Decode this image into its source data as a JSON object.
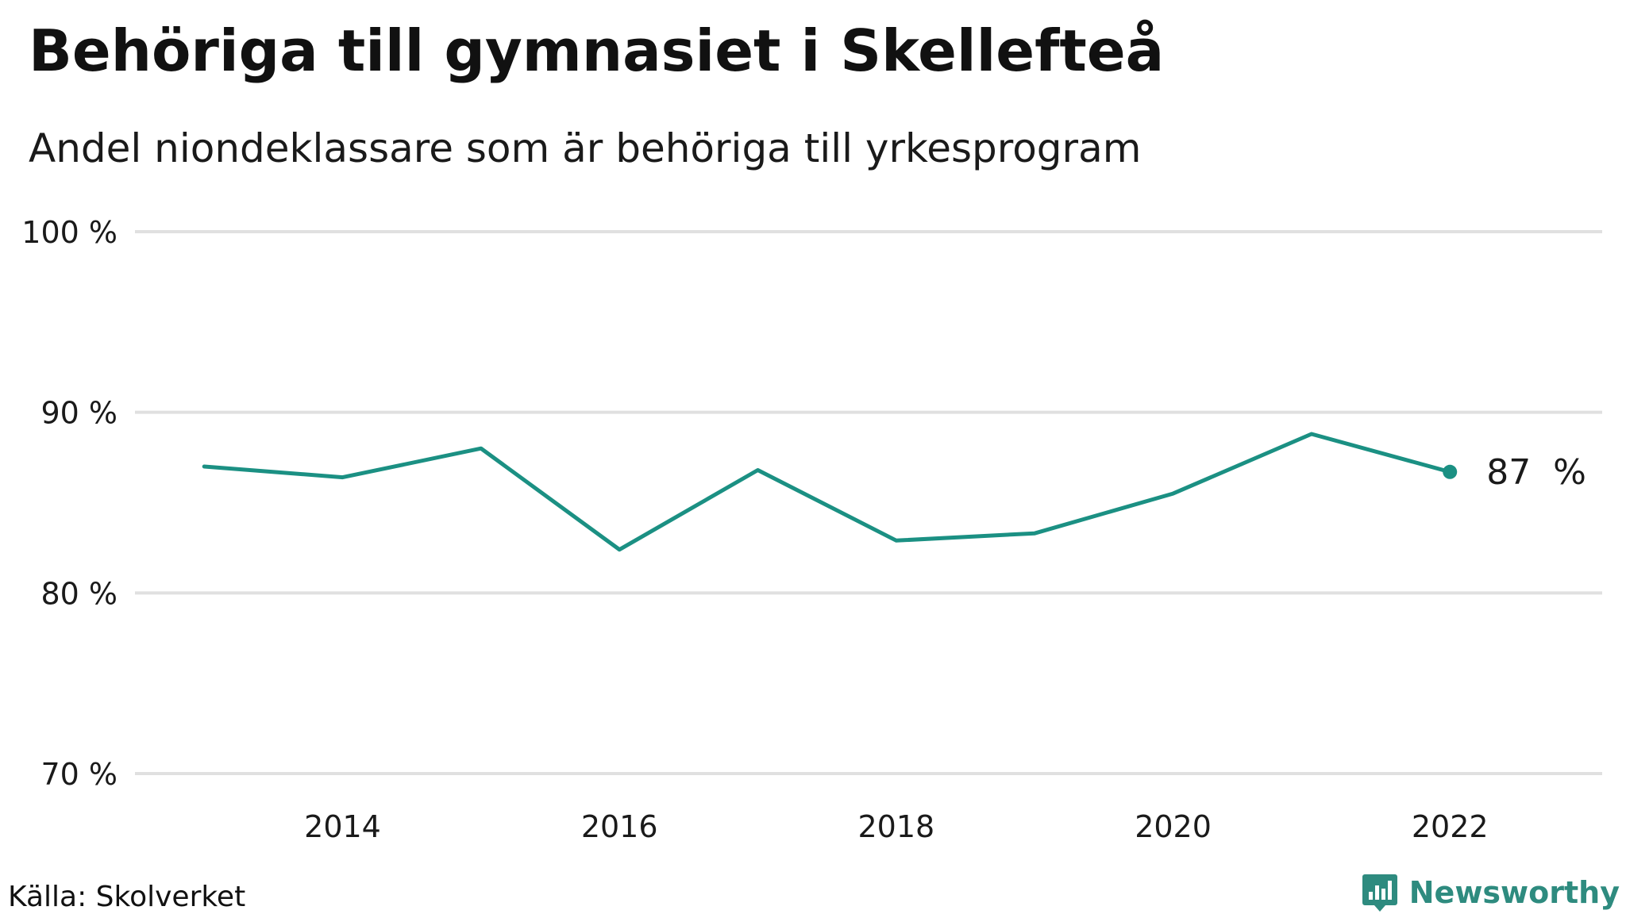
{
  "header": {
    "title": "Behöriga till gymnasiet i Skellefteå",
    "subtitle": "Andel niondeklassare som är behöriga till yrkesprogram"
  },
  "footer": {
    "source": "Källa: Skolverket",
    "brand": "Newsworthy",
    "brand_icon": "bar-chart-icon"
  },
  "colors": {
    "line": "#1b9083",
    "grid": "#e0e0e0",
    "text": "#1a1a1a",
    "brand": "#2e8b7f"
  },
  "chart_data": {
    "type": "line",
    "x": [
      2013,
      2014,
      2015,
      2016,
      2017,
      2018,
      2019,
      2020,
      2021,
      2022
    ],
    "series": [
      {
        "values": [
          87.0,
          86.4,
          88.0,
          82.4,
          86.8,
          82.9,
          83.3,
          85.5,
          88.8,
          86.7
        ]
      }
    ],
    "xticks": [
      2014,
      2016,
      2018,
      2020,
      2022
    ],
    "xtick_labels": [
      "2014",
      "2016",
      "2018",
      "2020",
      "2022"
    ],
    "yticks": [
      70,
      80,
      90,
      100
    ],
    "ytick_labels": [
      "70 %",
      "80 %",
      "90 %",
      "100 %"
    ],
    "ylim": [
      70,
      100
    ],
    "xlim": [
      2012.5,
      2023.1
    ],
    "grid": true,
    "end_label": "87  %"
  }
}
